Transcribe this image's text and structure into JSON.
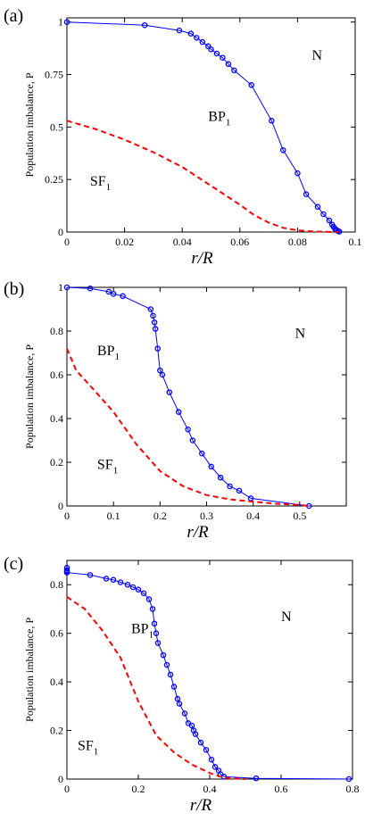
{
  "chart_data": [
    {
      "type": "line",
      "panel_label": "(a)",
      "xlabel": "r/R",
      "ylabel": "Population imbalance, P",
      "xlim": [
        0,
        0.1
      ],
      "ylim": [
        0,
        1.02
      ],
      "xticks": [
        0,
        0.02,
        0.04,
        0.06,
        0.08,
        0.1
      ],
      "xtick_labels": [
        "0",
        "0.02",
        "0.04",
        "0.06",
        "0.08",
        "0.1"
      ],
      "yticks": [
        0,
        0.25,
        0.5,
        0.75,
        1
      ],
      "ytick_labels": [
        "0",
        "0.25",
        "0.5",
        "0.75",
        "1"
      ],
      "regions": [
        {
          "label": "N",
          "x": 0.085,
          "y": 0.82
        },
        {
          "label": "BP",
          "sub": "1",
          "x": 0.049,
          "y": 0.53
        },
        {
          "label": "SF",
          "sub": "1",
          "x": 0.008,
          "y": 0.22
        }
      ],
      "series": [
        {
          "style": "blue-circles-line",
          "color": "#0000ff",
          "x": [
            0.0,
            0.027,
            0.039,
            0.043,
            0.045,
            0.047,
            0.049,
            0.05,
            0.052,
            0.054,
            0.056,
            0.058,
            0.064,
            0.071,
            0.075,
            0.08,
            0.083,
            0.087,
            0.089,
            0.091,
            0.092,
            0.0925,
            0.093,
            0.0935,
            0.094,
            0.0945
          ],
          "y": [
            1.0,
            0.985,
            0.96,
            0.945,
            0.925,
            0.905,
            0.885,
            0.87,
            0.85,
            0.83,
            0.8,
            0.77,
            0.7,
            0.53,
            0.39,
            0.28,
            0.18,
            0.12,
            0.085,
            0.055,
            0.035,
            0.025,
            0.015,
            0.01,
            0.005,
            0.002
          ]
        },
        {
          "style": "red-dashed",
          "color": "#ff0000",
          "x": [
            0.0,
            0.01,
            0.02,
            0.03,
            0.04,
            0.05,
            0.06,
            0.065,
            0.07,
            0.075,
            0.08,
            0.085,
            0.09,
            0.094
          ],
          "y": [
            0.53,
            0.49,
            0.44,
            0.38,
            0.31,
            0.22,
            0.13,
            0.08,
            0.045,
            0.02,
            0.008,
            0.003,
            0.001,
            0.0
          ]
        }
      ]
    },
    {
      "type": "line",
      "panel_label": "(b)",
      "xlabel": "r/R",
      "ylabel": "Population imbalance, P",
      "xlim": [
        0,
        0.6
      ],
      "ylim": [
        0,
        1.0
      ],
      "xticks": [
        0,
        0.1,
        0.2,
        0.3,
        0.4,
        0.5
      ],
      "xtick_labels": [
        "0",
        "0.1",
        "0.2",
        "0.3",
        "0.4",
        "0.5"
      ],
      "yticks": [
        0,
        0.2,
        0.4,
        0.6,
        0.8,
        1
      ],
      "ytick_labels": [
        "0",
        "0.2",
        "0.4",
        "0.6",
        "0.8",
        "1"
      ],
      "regions": [
        {
          "label": "N",
          "x": 0.49,
          "y": 0.77
        },
        {
          "label": "BP",
          "sub": "1",
          "x": 0.065,
          "y": 0.69
        },
        {
          "label": "SF",
          "sub": "1",
          "x": 0.065,
          "y": 0.17
        }
      ],
      "series": [
        {
          "style": "blue-circles-line",
          "color": "#0000ff",
          "x": [
            0.0,
            0.05,
            0.09,
            0.1,
            0.12,
            0.18,
            0.185,
            0.188,
            0.19,
            0.195,
            0.2,
            0.205,
            0.22,
            0.24,
            0.26,
            0.27,
            0.29,
            0.31,
            0.33,
            0.35,
            0.37,
            0.395,
            0.52
          ],
          "y": [
            1.0,
            0.995,
            0.98,
            0.97,
            0.96,
            0.9,
            0.87,
            0.84,
            0.81,
            0.72,
            0.62,
            0.6,
            0.52,
            0.43,
            0.35,
            0.3,
            0.24,
            0.18,
            0.13,
            0.09,
            0.07,
            0.035,
            0.0
          ]
        },
        {
          "style": "red-dashed",
          "color": "#ff0000",
          "x": [
            0.0,
            0.02,
            0.05,
            0.1,
            0.15,
            0.2,
            0.25,
            0.3,
            0.35,
            0.4,
            0.45,
            0.5,
            0.52
          ],
          "y": [
            0.72,
            0.62,
            0.55,
            0.43,
            0.28,
            0.16,
            0.09,
            0.05,
            0.03,
            0.02,
            0.01,
            0.005,
            0.0
          ]
        }
      ]
    },
    {
      "type": "line",
      "panel_label": "(c)",
      "xlabel": "r/R",
      "ylabel": "Population imbalance, P",
      "xlim": [
        0,
        0.8
      ],
      "ylim": [
        0,
        0.9
      ],
      "xticks": [
        0,
        0.2,
        0.4,
        0.6,
        0.8
      ],
      "xtick_labels": [
        "0",
        "0.2",
        "0.4",
        "0.6",
        "0.8"
      ],
      "yticks": [
        0,
        0.2,
        0.4,
        0.6,
        0.8
      ],
      "ytick_labels": [
        "0",
        "0.2",
        "0.4",
        "0.6",
        "0.8"
      ],
      "regions": [
        {
          "label": "N",
          "x": 0.6,
          "y": 0.65
        },
        {
          "label": "BP",
          "sub": "1",
          "x": 0.18,
          "y": 0.6
        },
        {
          "label": "SF",
          "sub": "1",
          "x": 0.03,
          "y": 0.12
        }
      ],
      "series": [
        {
          "style": "blue-circles-line",
          "color": "#0000ff",
          "x": [
            0.0,
            0.0,
            0.0,
            0.0,
            0.065,
            0.11,
            0.13,
            0.15,
            0.17,
            0.185,
            0.2,
            0.215,
            0.23,
            0.24,
            0.245,
            0.25,
            0.255,
            0.27,
            0.28,
            0.29,
            0.3,
            0.31,
            0.315,
            0.33,
            0.34,
            0.35,
            0.355,
            0.36,
            0.375,
            0.39,
            0.405,
            0.415,
            0.425,
            0.43,
            0.44,
            0.53,
            0.79
          ],
          "y": [
            0.87,
            0.86,
            0.855,
            0.85,
            0.84,
            0.825,
            0.82,
            0.81,
            0.8,
            0.79,
            0.78,
            0.765,
            0.74,
            0.7,
            0.64,
            0.6,
            0.56,
            0.51,
            0.47,
            0.43,
            0.38,
            0.33,
            0.31,
            0.27,
            0.23,
            0.22,
            0.2,
            0.185,
            0.15,
            0.12,
            0.08,
            0.05,
            0.035,
            0.02,
            0.01,
            0.003,
            0.0
          ]
        },
        {
          "style": "red-dashed",
          "color": "#ff0000",
          "x": [
            0.0,
            0.05,
            0.1,
            0.15,
            0.2,
            0.25,
            0.3,
            0.35,
            0.4,
            0.43,
            0.45,
            0.5
          ],
          "y": [
            0.75,
            0.7,
            0.61,
            0.5,
            0.32,
            0.18,
            0.11,
            0.06,
            0.025,
            0.01,
            0.004,
            0.0
          ]
        }
      ]
    }
  ]
}
